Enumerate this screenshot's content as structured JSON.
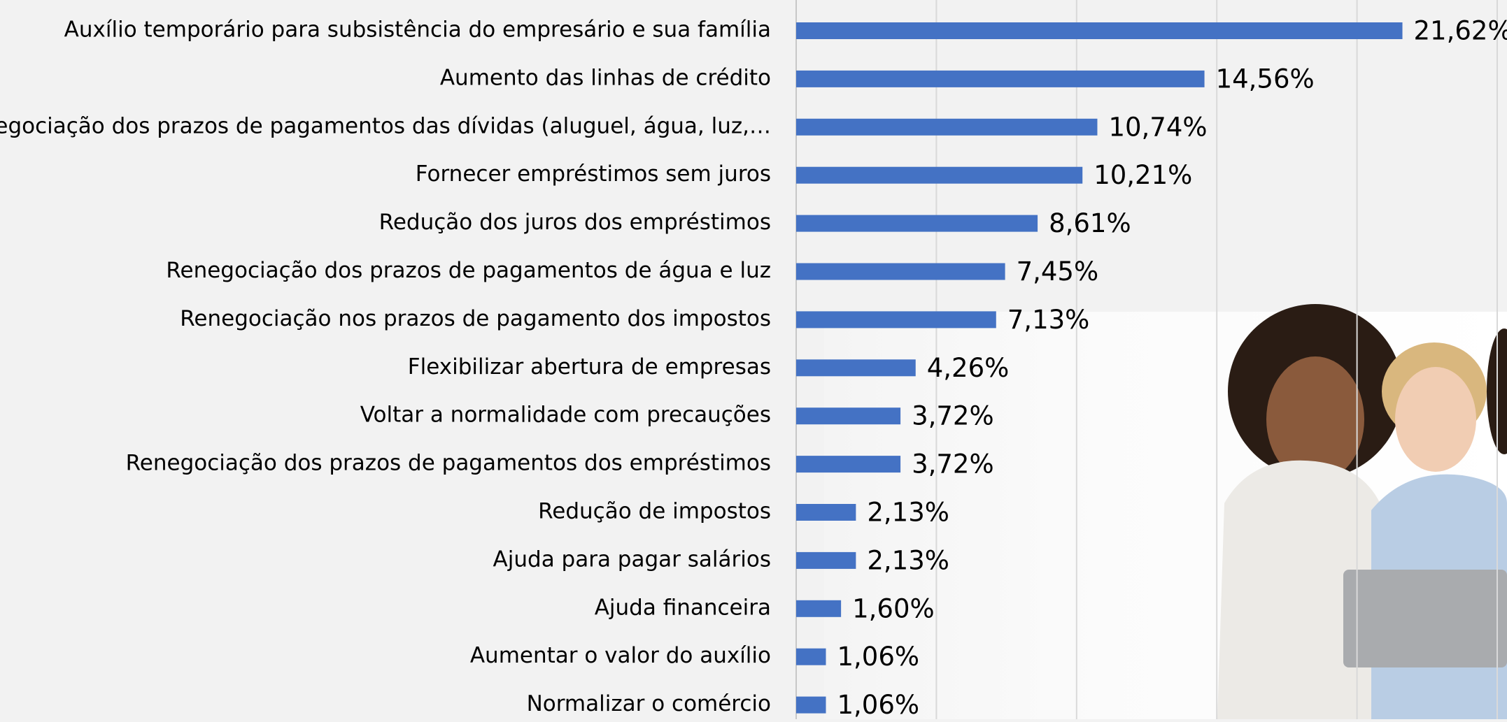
{
  "chart_data": {
    "type": "hbar",
    "categories": [
      "Auxílio temporário para subsistência do empresário e sua família",
      "Aumento das linhas de crédito",
      "Renegociação dos prazos de pagamentos das dívidas (aluguel, água, luz,…",
      "Fornecer empréstimos sem juros",
      "Redução dos juros dos empréstimos",
      "Renegociação dos prazos de pagamentos de água e luz",
      "Renegociação nos prazos de pagamento dos impostos",
      "Flexibilizar abertura de empresas",
      "Voltar a normalidade com precauções",
      "Renegociação dos prazos de pagamentos dos empréstimos",
      "Redução de impostos",
      "Ajuda para pagar salários",
      "Ajuda financeira",
      "Aumentar o valor do auxílio",
      "Normalizar o comércio"
    ],
    "values": [
      21.62,
      14.56,
      10.74,
      10.21,
      8.61,
      7.45,
      7.13,
      4.26,
      3.72,
      3.72,
      2.13,
      2.13,
      1.6,
      1.06,
      1.06
    ],
    "value_labels": [
      "21,62%",
      "14,56%",
      "10,74%",
      "10,21%",
      "8,61%",
      "7,45%",
      "7,13%",
      "4,26%",
      "3,72%",
      "3,72%",
      "2,13%",
      "2,13%",
      "1,60%",
      "1,06%",
      "1,06%"
    ],
    "color": "#4472c4",
    "xlim": [
      0,
      25
    ],
    "xticks": [
      0,
      5,
      10,
      15,
      20,
      25
    ],
    "grid": true
  }
}
